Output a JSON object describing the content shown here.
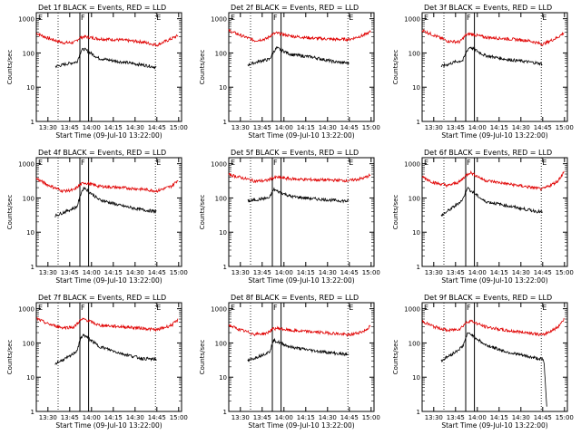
{
  "chart_data": [
    {
      "type": "line",
      "title": "Det 1f BLACK = Events, RED = LLD",
      "xlabel": "Start Time (09-Jul-10 13:22:00)",
      "ylabel": "Counts/sec",
      "x_ticks": [
        "13:30",
        "13:45",
        "14:00",
        "14:15",
        "14:30",
        "14:45",
        "15:00"
      ],
      "y_ticks": [
        "1",
        "10",
        "100",
        "1000"
      ],
      "y_scale": "log",
      "ylim": [
        1,
        1500
      ],
      "marker_labels": [
        "E",
        "F",
        "E"
      ],
      "series": [
        {
          "name": "LLD",
          "color": "#e00000",
          "x": [
            "13:22",
            "13:30",
            "13:40",
            "13:48",
            "13:52",
            "13:55",
            "14:05",
            "14:20",
            "14:35",
            "14:45",
            "14:55",
            "15:00"
          ],
          "y": [
            380,
            270,
            200,
            200,
            280,
            300,
            260,
            240,
            210,
            170,
            260,
            330
          ]
        },
        {
          "name": "Events",
          "color": "#000000",
          "x": [
            "13:35",
            "13:45",
            "13:50",
            "13:53",
            "13:55",
            "14:05",
            "14:20",
            "14:35",
            "14:45"
          ],
          "y": [
            40,
            50,
            55,
            120,
            130,
            70,
            55,
            45,
            38
          ]
        }
      ]
    },
    {
      "type": "line",
      "title": "Det 2f BLACK = Events, RED = LLD",
      "xlabel": "Start Time (09-Jul-10 13:22:00)",
      "ylabel": "Counts/sec",
      "x_ticks": [
        "13:30",
        "13:45",
        "14:00",
        "14:15",
        "14:30",
        "14:45",
        "15:00"
      ],
      "y_ticks": [
        "1",
        "10",
        "100",
        "1000"
      ],
      "y_scale": "log",
      "ylim": [
        1,
        1500
      ],
      "marker_labels": [
        "E",
        "F",
        "E"
      ],
      "series": [
        {
          "name": "LLD",
          "color": "#e00000",
          "x": [
            "13:22",
            "13:30",
            "13:40",
            "13:48",
            "13:52",
            "13:55",
            "14:05",
            "14:20",
            "14:35",
            "14:45",
            "14:55",
            "15:00"
          ],
          "y": [
            450,
            330,
            230,
            260,
            350,
            380,
            310,
            270,
            250,
            250,
            330,
            420
          ]
        },
        {
          "name": "Events",
          "color": "#000000",
          "x": [
            "13:35",
            "13:45",
            "13:50",
            "13:53",
            "13:55",
            "14:05",
            "14:20",
            "14:35",
            "14:45"
          ],
          "y": [
            45,
            60,
            65,
            110,
            140,
            90,
            75,
            55,
            50
          ]
        }
      ]
    },
    {
      "type": "line",
      "title": "Det 3f BLACK = Events, RED = LLD",
      "xlabel": "Start Time (09-Jul-10 13:22:00)",
      "ylabel": "Counts/sec",
      "x_ticks": [
        "13:30",
        "13:45",
        "14:00",
        "14:15",
        "14:30",
        "14:45",
        "15:00"
      ],
      "y_ticks": [
        "1",
        "10",
        "100",
        "1000"
      ],
      "y_scale": "log",
      "ylim": [
        1,
        1500
      ],
      "marker_labels": [
        "E",
        "F",
        "E"
      ],
      "series": [
        {
          "name": "LLD",
          "color": "#e00000",
          "x": [
            "13:22",
            "13:30",
            "13:40",
            "13:48",
            "13:52",
            "13:55",
            "14:05",
            "14:20",
            "14:35",
            "14:45",
            "14:55",
            "15:00"
          ],
          "y": [
            460,
            330,
            220,
            210,
            330,
            360,
            290,
            260,
            230,
            180,
            280,
            400
          ]
        },
        {
          "name": "Events",
          "color": "#000000",
          "x": [
            "13:35",
            "13:45",
            "13:50",
            "13:53",
            "13:55",
            "14:05",
            "14:20",
            "14:35",
            "14:45"
          ],
          "y": [
            40,
            55,
            60,
            120,
            150,
            85,
            65,
            55,
            48
          ]
        }
      ]
    },
    {
      "type": "line",
      "title": "Det 4f BLACK = Events, RED = LLD",
      "xlabel": "Start Time (09-Jul-10 13:22:00)",
      "ylabel": "Counts/sec",
      "x_ticks": [
        "13:30",
        "13:45",
        "14:00",
        "14:15",
        "14:30",
        "14:45",
        "15:00"
      ],
      "y_ticks": [
        "1",
        "10",
        "100",
        "1000"
      ],
      "y_scale": "log",
      "ylim": [
        1,
        1500
      ],
      "marker_labels": [
        "E",
        "F",
        "E"
      ],
      "series": [
        {
          "name": "LLD",
          "color": "#e00000",
          "x": [
            "13:22",
            "13:30",
            "13:40",
            "13:48",
            "13:52",
            "13:55",
            "14:05",
            "14:20",
            "14:35",
            "14:45",
            "14:55",
            "15:00"
          ],
          "y": [
            370,
            240,
            160,
            170,
            240,
            280,
            220,
            200,
            180,
            160,
            220,
            350
          ]
        },
        {
          "name": "Events",
          "color": "#000000",
          "x": [
            "13:35",
            "13:45",
            "13:50",
            "13:53",
            "13:55",
            "14:05",
            "14:20",
            "14:35",
            "14:45"
          ],
          "y": [
            30,
            45,
            55,
            150,
            200,
            90,
            60,
            45,
            40
          ]
        }
      ]
    },
    {
      "type": "line",
      "title": "Det 5f BLACK = Events, RED = LLD",
      "xlabel": "Start Time (09-Jul-10 13:22:00)",
      "ylabel": "Counts/sec",
      "x_ticks": [
        "13:30",
        "13:45",
        "14:00",
        "14:15",
        "14:30",
        "14:45",
        "15:00"
      ],
      "y_ticks": [
        "1",
        "10",
        "100",
        "1000"
      ],
      "y_scale": "log",
      "ylim": [
        1,
        1500
      ],
      "marker_labels": [
        "E",
        "F",
        "E"
      ],
      "series": [
        {
          "name": "LLD",
          "color": "#e00000",
          "x": [
            "13:22",
            "13:30",
            "13:40",
            "13:48",
            "13:52",
            "13:55",
            "14:05",
            "14:20",
            "14:35",
            "14:45",
            "14:55",
            "15:00"
          ],
          "y": [
            480,
            400,
            310,
            320,
            380,
            400,
            360,
            340,
            330,
            320,
            380,
            480
          ]
        },
        {
          "name": "Events",
          "color": "#000000",
          "x": [
            "13:35",
            "13:45",
            "13:50",
            "13:53",
            "13:55",
            "14:05",
            "14:20",
            "14:35",
            "14:45"
          ],
          "y": [
            80,
            95,
            100,
            180,
            160,
            110,
            95,
            85,
            80
          ]
        }
      ]
    },
    {
      "type": "line",
      "title": "Det 6f BLACK = Events, RED = LLD",
      "xlabel": "Start Time (09-Jul-10 13:22:00)",
      "ylabel": "Counts/sec",
      "x_ticks": [
        "13:30",
        "13:45",
        "14:00",
        "14:15",
        "14:30",
        "14:45",
        "15:00"
      ],
      "y_ticks": [
        "1",
        "10",
        "100",
        "1000"
      ],
      "y_scale": "log",
      "ylim": [
        1,
        1500
      ],
      "marker_labels": [
        "E",
        "F",
        "E"
      ],
      "series": [
        {
          "name": "LLD",
          "color": "#e00000",
          "x": [
            "13:22",
            "13:30",
            "13:40",
            "13:48",
            "13:52",
            "13:55",
            "14:05",
            "14:20",
            "14:35",
            "14:45",
            "14:55",
            "15:00"
          ],
          "y": [
            420,
            280,
            230,
            300,
            450,
            560,
            330,
            260,
            210,
            180,
            300,
            600
          ]
        },
        {
          "name": "Events",
          "color": "#000000",
          "x": [
            "13:35",
            "13:45",
            "13:50",
            "13:53",
            "13:55",
            "14:05",
            "14:20",
            "14:35",
            "14:45"
          ],
          "y": [
            30,
            60,
            90,
            200,
            170,
            80,
            60,
            45,
            38
          ]
        }
      ]
    },
    {
      "type": "line",
      "title": "Det 7f BLACK = Events, RED = LLD",
      "xlabel": "Start Time (09-Jul-10 13:22:00)",
      "ylabel": "Counts/sec",
      "x_ticks": [
        "13:30",
        "13:45",
        "14:00",
        "14:15",
        "14:30",
        "14:45",
        "15:00"
      ],
      "y_ticks": [
        "1",
        "10",
        "100",
        "1000"
      ],
      "y_scale": "log",
      "ylim": [
        1,
        1500
      ],
      "marker_labels": [
        "E",
        "F",
        "E"
      ],
      "series": [
        {
          "name": "LLD",
          "color": "#e00000",
          "x": [
            "13:22",
            "13:30",
            "13:40",
            "13:48",
            "13:52",
            "13:55",
            "14:05",
            "14:20",
            "14:35",
            "14:45",
            "14:55",
            "15:00"
          ],
          "y": [
            520,
            360,
            280,
            290,
            450,
            500,
            330,
            300,
            270,
            240,
            330,
            480
          ]
        },
        {
          "name": "Events",
          "color": "#000000",
          "x": [
            "13:35",
            "13:45",
            "13:50",
            "13:53",
            "13:55",
            "14:05",
            "14:20",
            "14:35",
            "14:45"
          ],
          "y": [
            25,
            40,
            60,
            150,
            170,
            80,
            50,
            35,
            33
          ]
        }
      ]
    },
    {
      "type": "line",
      "title": "Det 8f BLACK = Events, RED = LLD",
      "xlabel": "Start Time (09-Jul-10 13:22:00)",
      "ylabel": "Counts/sec",
      "x_ticks": [
        "13:30",
        "13:45",
        "14:00",
        "14:15",
        "14:30",
        "14:45",
        "15:00"
      ],
      "y_ticks": [
        "1",
        "10",
        "100",
        "1000"
      ],
      "y_scale": "log",
      "ylim": [
        1,
        1500
      ],
      "marker_labels": [
        "E",
        "F",
        "E"
      ],
      "series": [
        {
          "name": "LLD",
          "color": "#e00000",
          "x": [
            "13:22",
            "13:30",
            "13:40",
            "13:48",
            "13:52",
            "13:55",
            "14:05",
            "14:20",
            "14:35",
            "14:45",
            "14:55",
            "15:00"
          ],
          "y": [
            330,
            240,
            180,
            190,
            250,
            270,
            230,
            210,
            190,
            170,
            220,
            320
          ]
        },
        {
          "name": "Events",
          "color": "#000000",
          "x": [
            "13:35",
            "13:45",
            "13:50",
            "13:53",
            "13:55",
            "14:05",
            "14:20",
            "14:35",
            "14:45"
          ],
          "y": [
            30,
            45,
            55,
            120,
            110,
            75,
            60,
            50,
            45
          ]
        }
      ]
    },
    {
      "type": "line",
      "title": "Det 9f BLACK = Events, RED = LLD",
      "xlabel": "Start Time (09-Jul-10 13:22:00)",
      "ylabel": "Counts/sec",
      "x_ticks": [
        "13:30",
        "13:45",
        "14:00",
        "14:15",
        "14:30",
        "14:45",
        "15:00"
      ],
      "y_ticks": [
        "1",
        "10",
        "100",
        "1000"
      ],
      "y_scale": "log",
      "ylim": [
        1,
        1500
      ],
      "marker_labels": [
        "E",
        "F",
        "E"
      ],
      "series": [
        {
          "name": "LLD",
          "color": "#e00000",
          "x": [
            "13:22",
            "13:30",
            "13:40",
            "13:48",
            "13:52",
            "13:55",
            "14:05",
            "14:20",
            "14:35",
            "14:45",
            "14:55",
            "15:00"
          ],
          "y": [
            430,
            300,
            230,
            260,
            380,
            450,
            300,
            230,
            200,
            170,
            280,
            520
          ]
        },
        {
          "name": "Events",
          "color": "#000000",
          "x": [
            "13:35",
            "13:45",
            "13:50",
            "13:53",
            "13:55",
            "14:05",
            "14:20",
            "14:35",
            "14:45",
            "14:46",
            "14:48"
          ],
          "y": [
            30,
            55,
            80,
            180,
            190,
            90,
            55,
            40,
            33,
            25,
            1
          ]
        }
      ]
    }
  ]
}
